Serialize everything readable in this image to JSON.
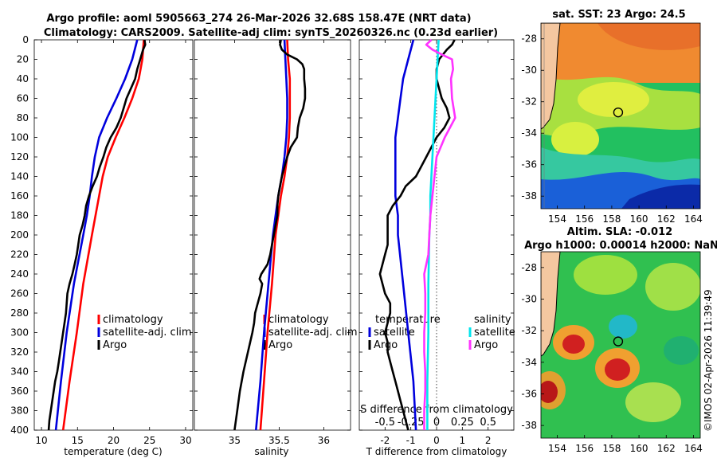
{
  "title": {
    "line1": "Argo profile: aoml 5905663_274 26-Mar-2026 32.68S 158.47E (NRT data)",
    "line2": "Climatology: CARS2009. Satellite-adj clim: synTS_20260326.nc (0.23d earlier)"
  },
  "watermark": "©IMOS 02-Apr-2026 11:39:49",
  "colors": {
    "climatology": "#ff0000",
    "satellite": "#0000dd",
    "argo": "#000000",
    "cyan": "#00e5ee",
    "magenta": "#ff33ff"
  },
  "chart_data": [
    {
      "id": "temperature",
      "type": "line",
      "xlabel": "temperature (deg C)",
      "ylabel": "",
      "xlim": [
        9,
        31
      ],
      "ylim": [
        400,
        0
      ],
      "xticks": [
        "10",
        "15",
        "20",
        "25",
        "30"
      ],
      "xtick_values": [
        10,
        15,
        20,
        25,
        30
      ],
      "yticks": [
        "0",
        "20",
        "40",
        "60",
        "80",
        "100",
        "120",
        "140",
        "160",
        "180",
        "200",
        "220",
        "240",
        "260",
        "280",
        "300",
        "320",
        "340",
        "360",
        "380",
        "400"
      ],
      "legend": [
        "climatology",
        "satellite-adj. clim",
        "Argo"
      ],
      "series": [
        {
          "name": "climatology",
          "color": "#ff0000",
          "depth": [
            0,
            20,
            40,
            60,
            80,
            100,
            120,
            140,
            160,
            180,
            200,
            250,
            300,
            350,
            400
          ],
          "values": [
            24.2,
            24,
            23.5,
            22.6,
            21.5,
            20.3,
            19.2,
            18.5,
            18,
            17.5,
            17,
            15.8,
            14.9,
            13.9,
            13.0
          ]
        },
        {
          "name": "satellite-adj. clim",
          "color": "#0000dd",
          "depth": [
            0,
            20,
            40,
            60,
            80,
            100,
            120,
            140,
            160,
            180,
            200,
            250,
            300,
            350,
            400
          ],
          "values": [
            23.3,
            22.6,
            21.6,
            20.4,
            19.1,
            18,
            17.4,
            17,
            16.7,
            16.3,
            15.8,
            14.5,
            13.5,
            12.7,
            12.0
          ]
        },
        {
          "name": "Argo",
          "color": "#000000",
          "depth": [
            0,
            5,
            10,
            20,
            30,
            40,
            50,
            60,
            70,
            80,
            90,
            100,
            110,
            120,
            130,
            140,
            150,
            160,
            170,
            180,
            190,
            200,
            210,
            220,
            230,
            240,
            250,
            260,
            270,
            280,
            290,
            300,
            310,
            320,
            330,
            340,
            350,
            360,
            370,
            380,
            390,
            400
          ],
          "values": [
            24.3,
            24.4,
            24.1,
            23.7,
            23.3,
            23.0,
            22.4,
            21.8,
            21.4,
            21.0,
            20.4,
            19.6,
            19.0,
            18.6,
            18.1,
            17.7,
            17.1,
            16.6,
            16.2,
            16.0,
            15.7,
            15.3,
            15.1,
            14.9,
            14.6,
            14.3,
            13.9,
            13.6,
            13.5,
            13.4,
            13.2,
            13.0,
            12.8,
            12.6,
            12.4,
            12.2,
            11.9,
            11.7,
            11.5,
            11.3,
            11.1,
            11.0
          ]
        }
      ]
    },
    {
      "id": "salinity",
      "type": "line",
      "xlabel": "salinity",
      "ylabel": "",
      "xlim": [
        34.55,
        36.3
      ],
      "ylim": [
        400,
        0
      ],
      "xticks": [
        "35",
        "35.5",
        "36"
      ],
      "xtick_values": [
        35,
        35.5,
        36
      ],
      "legend": [
        "climatology",
        "satellite-adj. clim",
        "Argo"
      ],
      "series": [
        {
          "name": "climatology",
          "color": "#ff0000",
          "depth": [
            0,
            20,
            40,
            60,
            80,
            100,
            120,
            140,
            160,
            180,
            200,
            250,
            300,
            350,
            400
          ],
          "values": [
            35.59,
            35.6,
            35.62,
            35.62,
            35.62,
            35.61,
            35.59,
            35.56,
            35.52,
            35.49,
            35.46,
            35.42,
            35.37,
            35.33,
            35.29
          ]
        },
        {
          "name": "satellite-adj. clim",
          "color": "#0000dd",
          "depth": [
            0,
            20,
            40,
            60,
            80,
            100,
            120,
            140,
            160,
            180,
            200,
            250,
            300,
            350,
            400
          ],
          "values": [
            35.56,
            35.57,
            35.58,
            35.59,
            35.59,
            35.58,
            35.56,
            35.53,
            35.49,
            35.46,
            35.43,
            35.38,
            35.33,
            35.29,
            35.24
          ]
        },
        {
          "name": "Argo",
          "color": "#000000",
          "depth": [
            0,
            5,
            10,
            15,
            20,
            25,
            30,
            40,
            50,
            60,
            70,
            80,
            90,
            100,
            110,
            120,
            130,
            140,
            150,
            160,
            170,
            180,
            190,
            200,
            210,
            220,
            230,
            240,
            245,
            250,
            260,
            270,
            280,
            290,
            300,
            320,
            340,
            360,
            380,
            400
          ],
          "values": [
            35.52,
            35.51,
            35.53,
            35.59,
            35.7,
            35.76,
            35.78,
            35.78,
            35.79,
            35.79,
            35.77,
            35.73,
            35.71,
            35.7,
            35.63,
            35.59,
            35.56,
            35.53,
            35.51,
            35.49,
            35.48,
            35.48,
            35.46,
            35.44,
            35.42,
            35.4,
            35.37,
            35.3,
            35.28,
            35.31,
            35.29,
            35.26,
            35.23,
            35.22,
            35.2,
            35.15,
            35.1,
            35.06,
            35.03,
            35.0
          ]
        }
      ]
    },
    {
      "id": "differences",
      "type": "line",
      "xlabel": "T difference from climatology",
      "xlabel_top": "S difference from climatology",
      "xlim": [
        -3,
        3
      ],
      "ylim": [
        400,
        0
      ],
      "xticks": [
        "-2",
        "-1",
        "0",
        "1",
        "2"
      ],
      "xtick_values": [
        -2,
        -1,
        0,
        1,
        2
      ],
      "xticks_top": [
        "-0.5",
        "-0.25",
        "0",
        "0.25",
        "0.5"
      ],
      "xtick_top_values": [
        -0.5,
        -0.25,
        0,
        0.25,
        0.5
      ],
      "legend_temperature": [
        "temperature",
        "satellite",
        "Argo"
      ],
      "legend_salinity": [
        "salinity",
        "satellite",
        "Argo"
      ],
      "series": [
        {
          "name": "T satellite",
          "color": "#0000dd",
          "depth": [
            0,
            20,
            40,
            60,
            80,
            100,
            120,
            140,
            160,
            180,
            200,
            250,
            300,
            350,
            400
          ],
          "values": [
            -0.9,
            -1.1,
            -1.3,
            -1.4,
            -1.5,
            -1.6,
            -1.6,
            -1.6,
            -1.6,
            -1.5,
            -1.5,
            -1.3,
            -1.1,
            -0.9,
            -0.8
          ]
        },
        {
          "name": "T Argo",
          "color": "#000000",
          "depth": [
            0,
            5,
            10,
            20,
            30,
            40,
            50,
            60,
            70,
            80,
            90,
            100,
            110,
            120,
            130,
            140,
            150,
            160,
            170,
            180,
            190,
            200,
            210,
            220,
            230,
            240,
            250,
            260,
            270,
            280,
            290,
            300,
            310,
            320,
            330,
            340,
            350,
            360,
            370,
            380,
            390,
            400
          ],
          "values": [
            0.7,
            0.6,
            0.4,
            0.1,
            0,
            0,
            0.1,
            0.2,
            0.4,
            0.5,
            0.3,
            0,
            -0.2,
            -0.4,
            -0.6,
            -0.8,
            -1.2,
            -1.4,
            -1.7,
            -1.9,
            -1.9,
            -1.9,
            -1.9,
            -2.0,
            -2.1,
            -2.2,
            -2.1,
            -2.0,
            -1.8,
            -1.8,
            -1.9,
            -2.0,
            -1.9,
            -1.9,
            -1.8,
            -1.7,
            -1.6,
            -1.5,
            -1.4,
            -1.3,
            -1.2,
            -1.1
          ]
        },
        {
          "name": "S satellite",
          "color": "#00e5ee",
          "depth": [
            0,
            20,
            40,
            60,
            80,
            100,
            120,
            140,
            160,
            180,
            200,
            250,
            300,
            350,
            400
          ],
          "values": [
            0.02,
            0.01,
            0,
            -0.01,
            -0.02,
            -0.03,
            -0.04,
            -0.05,
            -0.06,
            -0.06,
            -0.07,
            -0.08,
            -0.08,
            -0.09,
            -0.09
          ]
        },
        {
          "name": "S Argo",
          "color": "#ff33ff",
          "depth": [
            0,
            5,
            10,
            15,
            20,
            30,
            40,
            60,
            80,
            100,
            120,
            140,
            160,
            180,
            200,
            220,
            240,
            260,
            280,
            300,
            320,
            340,
            360,
            380,
            400
          ],
          "values": [
            -0.05,
            -0.1,
            -0.04,
            0.05,
            0.15,
            0.16,
            0.14,
            0.15,
            0.18,
            0.08,
            0,
            -0.02,
            -0.04,
            -0.06,
            -0.07,
            -0.08,
            -0.12,
            -0.11,
            -0.11,
            -0.12,
            -0.12,
            -0.11,
            -0.11,
            -0.12,
            -0.12
          ]
        }
      ]
    },
    {
      "id": "sst-map",
      "type": "heatmap",
      "title": "sat. SST: 23 Argo: 24.5",
      "xlim": [
        152.8,
        164.5
      ],
      "ylim": [
        -38.8,
        -27
      ],
      "xticks": [
        "154",
        "156",
        "158",
        "160",
        "162",
        "164"
      ],
      "xtick_values": [
        154,
        156,
        158,
        160,
        162,
        164
      ],
      "yticks": [
        "-28",
        "-30",
        "-32",
        "-34",
        "-36",
        "-38"
      ],
      "ytick_values": [
        -28,
        -30,
        -32,
        -34,
        -36,
        -38
      ],
      "marker": {
        "lon": 158.47,
        "lat": -32.68
      }
    },
    {
      "id": "sla-map",
      "type": "heatmap",
      "title": "Altim. SLA: -0.012",
      "subtitle": "Argo h1000: 0.00014 h2000: NaN",
      "xlim": [
        152.8,
        164.5
      ],
      "ylim": [
        -38.8,
        -27
      ],
      "xticks": [
        "154",
        "156",
        "158",
        "160",
        "162",
        "164"
      ],
      "xtick_values": [
        154,
        156,
        158,
        160,
        162,
        164
      ],
      "yticks": [
        "-28",
        "-30",
        "-32",
        "-34",
        "-36",
        "-38"
      ],
      "ytick_values": [
        -28,
        -30,
        -32,
        -34,
        -36,
        -38
      ],
      "marker": {
        "lon": 158.47,
        "lat": -32.68
      }
    }
  ]
}
